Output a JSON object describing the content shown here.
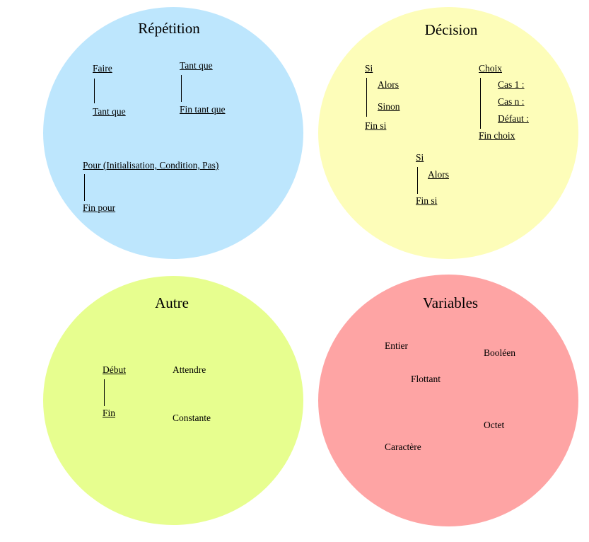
{
  "colors": {
    "repetition": "#bde6fd",
    "decision": "#fdfdb9",
    "autre": "#e7fe8f",
    "variables": "#fea4a4"
  },
  "repetition": {
    "title": "Répétition",
    "faire": "Faire",
    "tant_que_end": "Tant que",
    "tant_que": "Tant que",
    "fin_tant_que": "Fin tant que",
    "pour": "Pour (Initialisation, Condition, Pas)",
    "fin_pour": "Fin pour"
  },
  "decision": {
    "title": "Décision",
    "si": "Si",
    "alors": "Alors",
    "sinon": "Sinon",
    "fin_si": "Fin si",
    "choix": "Choix",
    "cas1": "Cas 1 :",
    "casn": "Cas n :",
    "defaut": "Défaut :",
    "fin_choix": "Fin choix",
    "si2": "Si",
    "alors2": "Alors",
    "fin_si2": "Fin si"
  },
  "autre": {
    "title": "Autre",
    "debut": "Début",
    "fin": "Fin",
    "attendre": "Attendre",
    "constante": "Constante"
  },
  "variables": {
    "title": "Variables",
    "entier": "Entier",
    "booleen": "Booléen",
    "flottant": "Flottant",
    "octet": "Octet",
    "caractere": "Caractère"
  }
}
